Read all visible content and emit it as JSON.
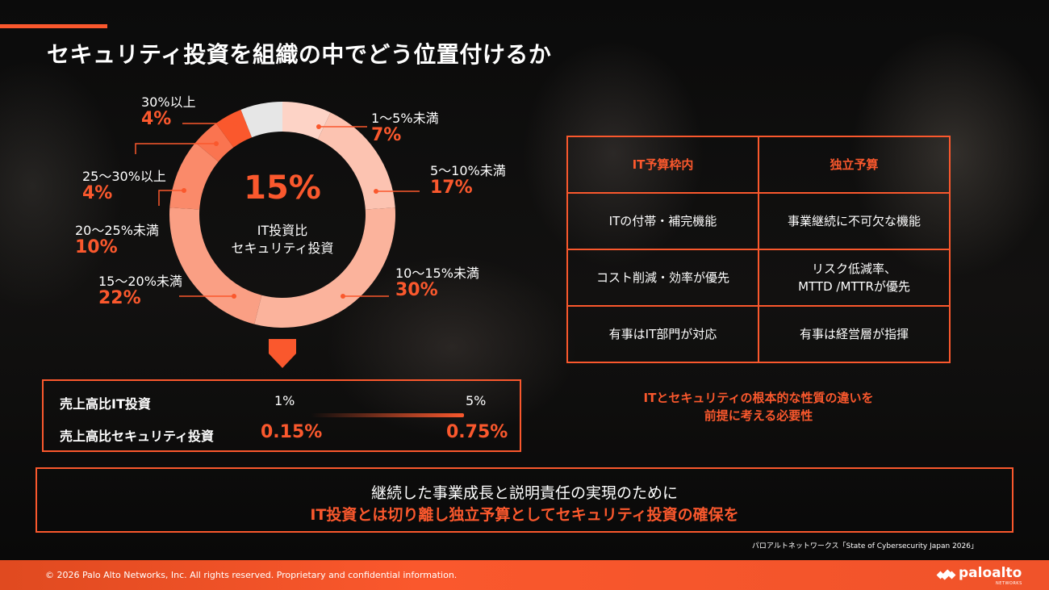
{
  "title": "セキュリティ投資を組織の中でどう位置付けるか",
  "chart_data": {
    "type": "pie",
    "center": {
      "value": "15%",
      "line1": "IT投資比",
      "line2": "セキュリティ投資"
    },
    "slices": [
      {
        "label": "1〜5%未満",
        "value": 7,
        "display": "7%",
        "color": "#fdd3c6"
      },
      {
        "label": "5〜10%未満",
        "value": 17,
        "display": "17%",
        "color": "#fcc3b1"
      },
      {
        "label": "10〜15%未満",
        "value": 30,
        "display": "30%",
        "color": "#fbb39c"
      },
      {
        "label": "15〜20%未満",
        "value": 22,
        "display": "22%",
        "color": "#fa9f84"
      },
      {
        "label": "20〜25%未満",
        "value": 10,
        "display": "10%",
        "color": "#fa8a6a"
      },
      {
        "label": "25〜30%以上",
        "value": 4,
        "display": "4%",
        "color": "#fa7450"
      },
      {
        "label": "30%以上",
        "value": 4,
        "display": "4%",
        "color": "#fa582d"
      },
      {
        "label": "",
        "value": 6,
        "display": "",
        "color": "#e6e6e6"
      }
    ]
  },
  "ratio_box": {
    "row1_label": "売上高比IT投資",
    "row1_low": "1%",
    "row1_high": "5%",
    "row2_label": "売上高比セキュリティ投資",
    "row2_low": "0.15%",
    "row2_high": "0.75%"
  },
  "comparison": {
    "headers": [
      "IT予算枠内",
      "独立予算"
    ],
    "rows": [
      [
        "ITの付帯・補完機能",
        "事業継続に不可欠な機能"
      ],
      [
        "コスト削減・効率が優先",
        "リスク低減率、\nMTTD /MTTRが優先"
      ],
      [
        "有事はIT部門が対応",
        "有事は経営層が指揮"
      ]
    ],
    "note_line1": "ITとセキュリティの根本的な性質の違いを",
    "note_line2": "前提に考える必要性"
  },
  "message": {
    "line1": "継続した事業成長と説明責任の実現のために",
    "line2": "IT投資とは切り離し独立予算としてセキュリティ投資の確保を"
  },
  "source": "パロアルトネットワークス「State of Cybersecurity Japan 2026」",
  "footer": {
    "copyright": "© 2026 Palo Alto Networks, Inc. All rights reserved. Proprietary and confidential information.",
    "logo_text": "paloalto",
    "logo_sub": "NETWORKS"
  }
}
